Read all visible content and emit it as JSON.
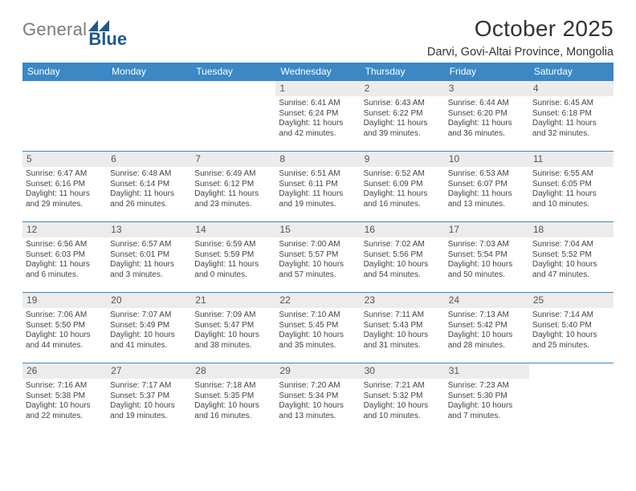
{
  "branding": {
    "word1": "General",
    "word2": "Blue"
  },
  "title": "October 2025",
  "location": "Darvi, Govi-Altai Province, Mongolia",
  "colors": {
    "header_blue": "#3b88c4",
    "week_border": "#3b88c4",
    "daynum_bg": "#ececec",
    "logo_dark": "#1f5a8a",
    "logo_gray": "#7b7b7b",
    "text": "#2b2b2b"
  },
  "weekdays": [
    "Sunday",
    "Monday",
    "Tuesday",
    "Wednesday",
    "Thursday",
    "Friday",
    "Saturday"
  ],
  "leading_blanks": 3,
  "days": [
    {
      "n": 1,
      "sunrise": "6:41 AM",
      "sunset": "6:24 PM",
      "daylight": "11 hours and 42 minutes."
    },
    {
      "n": 2,
      "sunrise": "6:43 AM",
      "sunset": "6:22 PM",
      "daylight": "11 hours and 39 minutes."
    },
    {
      "n": 3,
      "sunrise": "6:44 AM",
      "sunset": "6:20 PM",
      "daylight": "11 hours and 36 minutes."
    },
    {
      "n": 4,
      "sunrise": "6:45 AM",
      "sunset": "6:18 PM",
      "daylight": "11 hours and 32 minutes."
    },
    {
      "n": 5,
      "sunrise": "6:47 AM",
      "sunset": "6:16 PM",
      "daylight": "11 hours and 29 minutes."
    },
    {
      "n": 6,
      "sunrise": "6:48 AM",
      "sunset": "6:14 PM",
      "daylight": "11 hours and 26 minutes."
    },
    {
      "n": 7,
      "sunrise": "6:49 AM",
      "sunset": "6:12 PM",
      "daylight": "11 hours and 23 minutes."
    },
    {
      "n": 8,
      "sunrise": "6:51 AM",
      "sunset": "6:11 PM",
      "daylight": "11 hours and 19 minutes."
    },
    {
      "n": 9,
      "sunrise": "6:52 AM",
      "sunset": "6:09 PM",
      "daylight": "11 hours and 16 minutes."
    },
    {
      "n": 10,
      "sunrise": "6:53 AM",
      "sunset": "6:07 PM",
      "daylight": "11 hours and 13 minutes."
    },
    {
      "n": 11,
      "sunrise": "6:55 AM",
      "sunset": "6:05 PM",
      "daylight": "11 hours and 10 minutes."
    },
    {
      "n": 12,
      "sunrise": "6:56 AM",
      "sunset": "6:03 PM",
      "daylight": "11 hours and 6 minutes."
    },
    {
      "n": 13,
      "sunrise": "6:57 AM",
      "sunset": "6:01 PM",
      "daylight": "11 hours and 3 minutes."
    },
    {
      "n": 14,
      "sunrise": "6:59 AM",
      "sunset": "5:59 PM",
      "daylight": "11 hours and 0 minutes."
    },
    {
      "n": 15,
      "sunrise": "7:00 AM",
      "sunset": "5:57 PM",
      "daylight": "10 hours and 57 minutes."
    },
    {
      "n": 16,
      "sunrise": "7:02 AM",
      "sunset": "5:56 PM",
      "daylight": "10 hours and 54 minutes."
    },
    {
      "n": 17,
      "sunrise": "7:03 AM",
      "sunset": "5:54 PM",
      "daylight": "10 hours and 50 minutes."
    },
    {
      "n": 18,
      "sunrise": "7:04 AM",
      "sunset": "5:52 PM",
      "daylight": "10 hours and 47 minutes."
    },
    {
      "n": 19,
      "sunrise": "7:06 AM",
      "sunset": "5:50 PM",
      "daylight": "10 hours and 44 minutes."
    },
    {
      "n": 20,
      "sunrise": "7:07 AM",
      "sunset": "5:49 PM",
      "daylight": "10 hours and 41 minutes."
    },
    {
      "n": 21,
      "sunrise": "7:09 AM",
      "sunset": "5:47 PM",
      "daylight": "10 hours and 38 minutes."
    },
    {
      "n": 22,
      "sunrise": "7:10 AM",
      "sunset": "5:45 PM",
      "daylight": "10 hours and 35 minutes."
    },
    {
      "n": 23,
      "sunrise": "7:11 AM",
      "sunset": "5:43 PM",
      "daylight": "10 hours and 31 minutes."
    },
    {
      "n": 24,
      "sunrise": "7:13 AM",
      "sunset": "5:42 PM",
      "daylight": "10 hours and 28 minutes."
    },
    {
      "n": 25,
      "sunrise": "7:14 AM",
      "sunset": "5:40 PM",
      "daylight": "10 hours and 25 minutes."
    },
    {
      "n": 26,
      "sunrise": "7:16 AM",
      "sunset": "5:38 PM",
      "daylight": "10 hours and 22 minutes."
    },
    {
      "n": 27,
      "sunrise": "7:17 AM",
      "sunset": "5:37 PM",
      "daylight": "10 hours and 19 minutes."
    },
    {
      "n": 28,
      "sunrise": "7:18 AM",
      "sunset": "5:35 PM",
      "daylight": "10 hours and 16 minutes."
    },
    {
      "n": 29,
      "sunrise": "7:20 AM",
      "sunset": "5:34 PM",
      "daylight": "10 hours and 13 minutes."
    },
    {
      "n": 30,
      "sunrise": "7:21 AM",
      "sunset": "5:32 PM",
      "daylight": "10 hours and 10 minutes."
    },
    {
      "n": 31,
      "sunrise": "7:23 AM",
      "sunset": "5:30 PM",
      "daylight": "10 hours and 7 minutes."
    }
  ],
  "labels": {
    "sunrise": "Sunrise:",
    "sunset": "Sunset:",
    "daylight": "Daylight:"
  }
}
